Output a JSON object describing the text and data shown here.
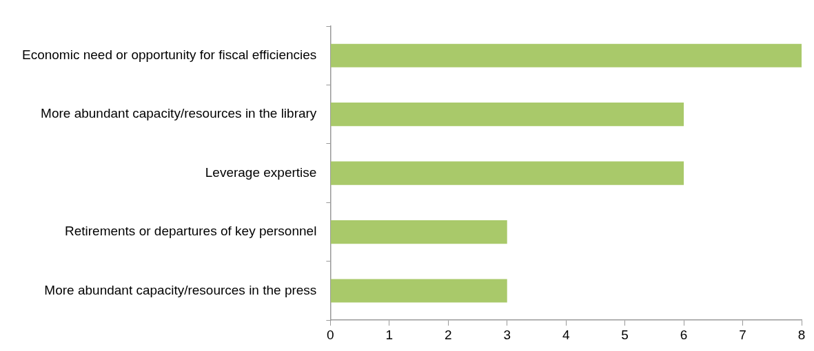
{
  "chart_data": {
    "type": "bar",
    "orientation": "horizontal",
    "categories": [
      "Economic need or opportunity for fiscal efficiencies",
      "More abundant capacity/resources in the library",
      "Leverage expertise",
      "Retirements or departures of key personnel",
      "More abundant capacity/resources in the press"
    ],
    "values": [
      8,
      6,
      6,
      3,
      3
    ],
    "color": "#a9c96a",
    "xlim": [
      0,
      8
    ],
    "xticks": [
      0,
      1,
      2,
      3,
      4,
      5,
      6,
      7,
      8
    ],
    "legend": false
  }
}
